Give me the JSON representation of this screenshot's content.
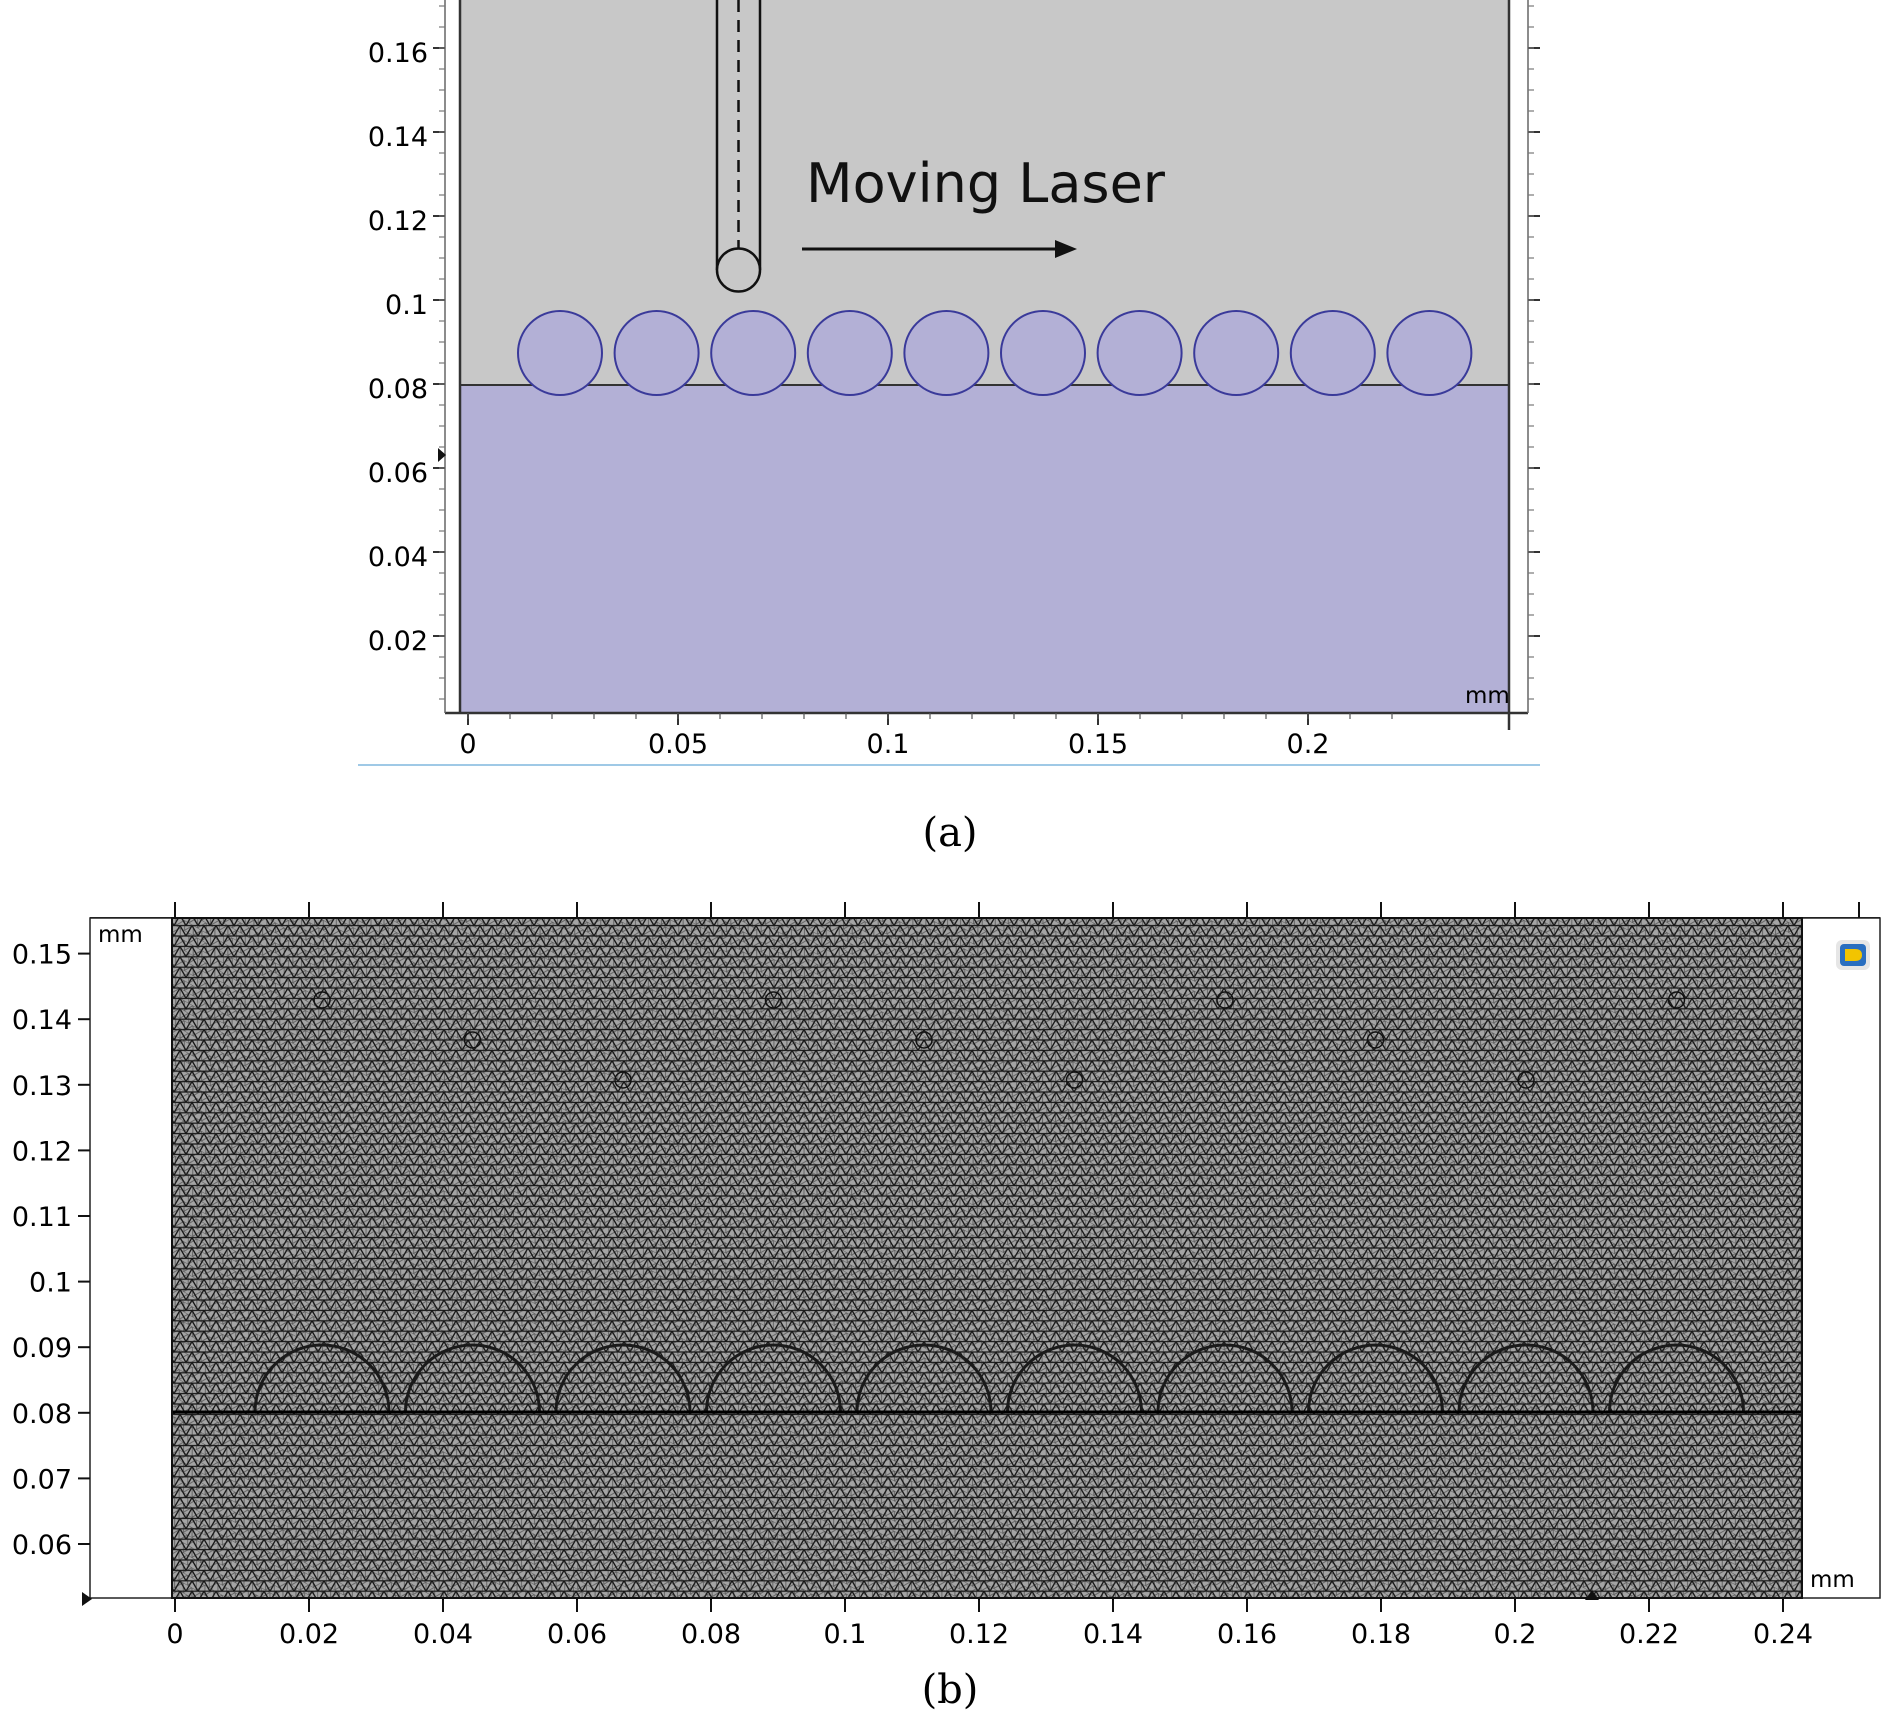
{
  "panel_a": {
    "annotation": "Moving Laser",
    "unit": "mm",
    "caption": "(a)",
    "x_ticks": [
      "0",
      "0.05",
      "0.1",
      "0.15",
      "0.2"
    ],
    "y_ticks": [
      "0.02",
      "0.04",
      "0.06",
      "0.08",
      "0.1",
      "0.12",
      "0.14",
      "0.16"
    ],
    "particle_count": 10,
    "colors": {
      "gas": "#c8c8c8",
      "substrate": "#b3b0d6",
      "particle": "#b3b0d6",
      "particle_edge": "#3a3a9a"
    }
  },
  "panel_b": {
    "unit_top": "mm",
    "unit_right": "mm",
    "caption": "(b)",
    "x_ticks": [
      "0",
      "0.02",
      "0.04",
      "0.06",
      "0.08",
      "0.1",
      "0.12",
      "0.14",
      "0.16",
      "0.18",
      "0.2",
      "0.22",
      "0.24"
    ],
    "y_ticks": [
      "0.06",
      "0.07",
      "0.08",
      "0.09",
      "0.1",
      "0.11",
      "0.12",
      "0.13",
      "0.14",
      "0.15"
    ],
    "particle_count": 10,
    "colors": {
      "mesh_bg": "#9a9a9a",
      "mesh_line": "#1a1a1a"
    }
  }
}
